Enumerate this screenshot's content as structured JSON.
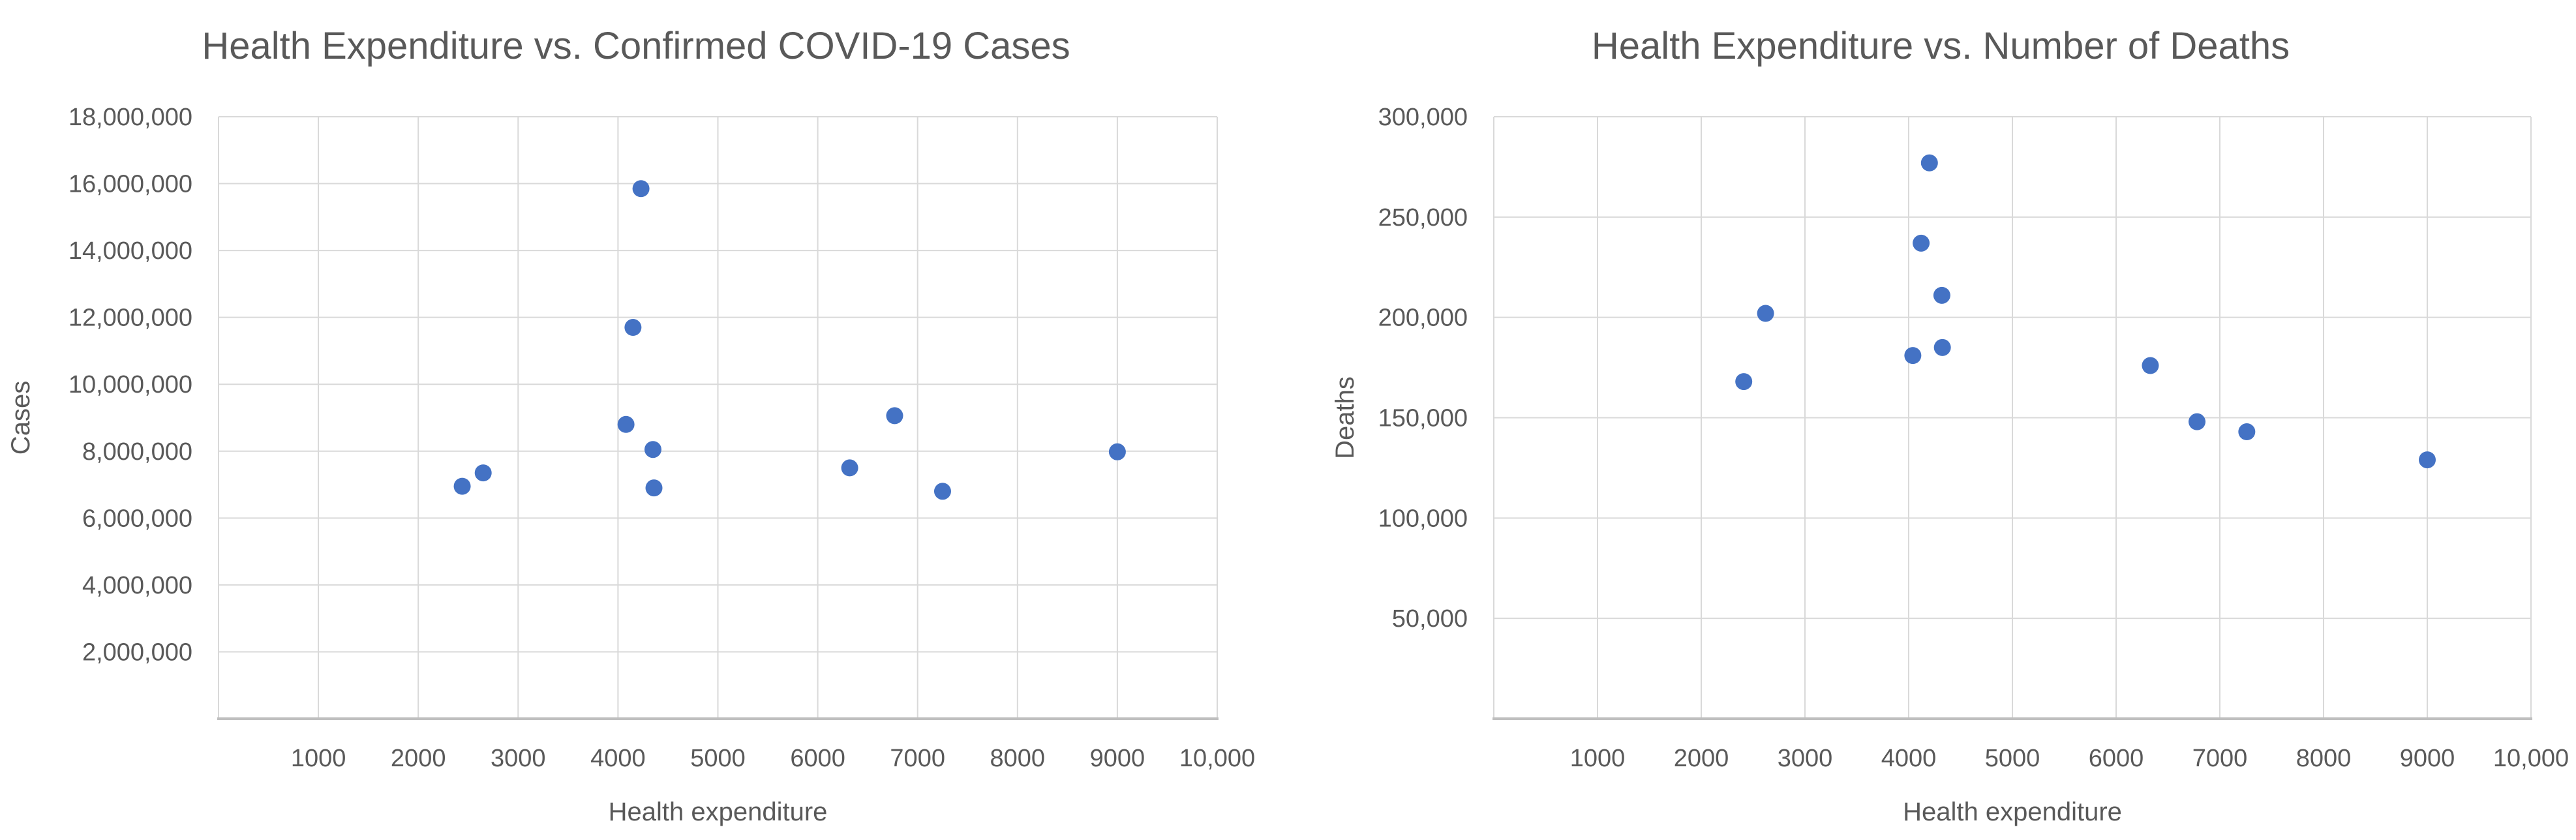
{
  "style": {
    "background": "#ffffff",
    "text_color": "#595959",
    "gridline_color": "#D9D9D9",
    "axis_line_color": "#BFBFBF",
    "marker_color": "#4472C4"
  },
  "chart_data": [
    {
      "type": "scatter",
      "title": "Health Expenditure vs. Confirmed COVID-19 Cases",
      "xlabel": "Health expenditure",
      "ylabel": "Cases",
      "xlim": [
        0,
        10000
      ],
      "ylim": [
        0,
        18000000
      ],
      "grid": true,
      "legend": false,
      "x_ticks": [
        {
          "value": 1000,
          "label": "1000"
        },
        {
          "value": 2000,
          "label": "2000"
        },
        {
          "value": 3000,
          "label": "3000"
        },
        {
          "value": 4000,
          "label": "4000"
        },
        {
          "value": 5000,
          "label": "5000"
        },
        {
          "value": 6000,
          "label": "6000"
        },
        {
          "value": 7000,
          "label": "7000"
        },
        {
          "value": 8000,
          "label": "8000"
        },
        {
          "value": 9000,
          "label": "9000"
        },
        {
          "value": 10000,
          "label": "10,000"
        }
      ],
      "y_ticks": [
        {
          "value": 2000000,
          "label": "2,000,000"
        },
        {
          "value": 4000000,
          "label": "4,000,000"
        },
        {
          "value": 6000000,
          "label": "6,000,000"
        },
        {
          "value": 8000000,
          "label": "8,000,000"
        },
        {
          "value": 10000000,
          "label": "10,000,000"
        },
        {
          "value": 12000000,
          "label": "12,000,000"
        },
        {
          "value": 14000000,
          "label": "14,000,000"
        },
        {
          "value": 16000000,
          "label": "16,000,000"
        },
        {
          "value": 18000000,
          "label": "18,000,000"
        }
      ],
      "points": [
        [
          2440,
          6950000
        ],
        [
          2650,
          7350000
        ],
        [
          4080,
          8800000
        ],
        [
          4150,
          11700000
        ],
        [
          4230,
          15850000
        ],
        [
          4350,
          8050000
        ],
        [
          4360,
          6900000
        ],
        [
          6320,
          7500000
        ],
        [
          6770,
          9060000
        ],
        [
          7250,
          6800000
        ],
        [
          9000,
          7980000
        ]
      ]
    },
    {
      "type": "scatter",
      "title": "Health Expenditure vs. Number of Deaths",
      "xlabel": "Health expenditure",
      "ylabel": "Deaths",
      "xlim": [
        0,
        10000
      ],
      "ylim": [
        0,
        300000
      ],
      "grid": true,
      "legend": false,
      "x_ticks": [
        {
          "value": 1000,
          "label": "1000"
        },
        {
          "value": 2000,
          "label": "2000"
        },
        {
          "value": 3000,
          "label": "3000"
        },
        {
          "value": 4000,
          "label": "4000"
        },
        {
          "value": 5000,
          "label": "5000"
        },
        {
          "value": 6000,
          "label": "6000"
        },
        {
          "value": 7000,
          "label": "7000"
        },
        {
          "value": 8000,
          "label": "8000"
        },
        {
          "value": 9000,
          "label": "9000"
        },
        {
          "value": 10000,
          "label": "10,000"
        }
      ],
      "y_ticks": [
        {
          "value": 50000,
          "label": "50,000"
        },
        {
          "value": 100000,
          "label": "100,000"
        },
        {
          "value": 150000,
          "label": "150,000"
        },
        {
          "value": 200000,
          "label": "200,000"
        },
        {
          "value": 250000,
          "label": "250,000"
        },
        {
          "value": 300000,
          "label": "300,000"
        }
      ],
      "points": [
        [
          2410,
          168000
        ],
        [
          2620,
          202000
        ],
        [
          4040,
          181000
        ],
        [
          4120,
          237000
        ],
        [
          4200,
          277000
        ],
        [
          4320,
          211000
        ],
        [
          4325,
          185000
        ],
        [
          6330,
          176000
        ],
        [
          6780,
          148000
        ],
        [
          7260,
          143000
        ],
        [
          9000,
          129000
        ]
      ]
    }
  ]
}
